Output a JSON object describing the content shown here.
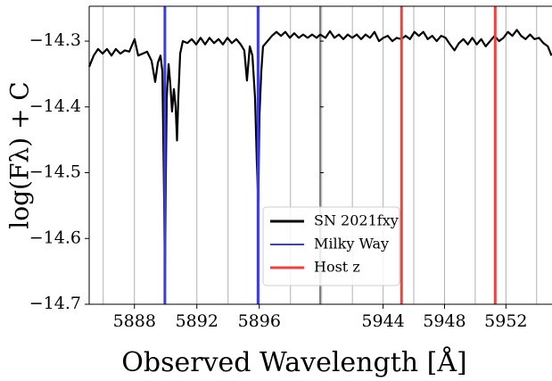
{
  "chart_data": {
    "type": "line",
    "ylabel": "log(Fλ) + C",
    "xlabel": "Observed Wavelength [Å]",
    "ylim": [
      -14.7,
      -14.247
    ],
    "yticks": [
      {
        "value": -14.3,
        "label": "−14.3"
      },
      {
        "value": -14.4,
        "label": "−14.4"
      },
      {
        "value": -14.5,
        "label": "−14.5"
      },
      {
        "value": -14.6,
        "label": "−14.6"
      },
      {
        "value": -14.7,
        "label": "−14.7"
      }
    ],
    "grid": true,
    "legend": "lower center",
    "panels": [
      {
        "xlim": [
          5885.1,
          5899.9
        ],
        "xticks": [
          5888,
          5892,
          5896
        ],
        "xgrid": [
          5886,
          5888,
          5890,
          5892,
          5894,
          5896,
          5898
        ]
      },
      {
        "xlim": [
          5939.9,
          5955.0
        ],
        "xticks": [
          5944,
          5948,
          5952
        ],
        "xgrid": [
          5940,
          5942,
          5944,
          5946,
          5948,
          5950,
          5952,
          5954
        ]
      }
    ],
    "series": [
      {
        "name": "SN 2021fxy",
        "color": "#000000",
        "x": [
          5885.1,
          5885.39,
          5885.67,
          5885.96,
          5886.24,
          5886.53,
          5886.81,
          5887.1,
          5887.39,
          5887.67,
          5888.01,
          5888.24,
          5888.53,
          5888.81,
          5889.1,
          5889.33,
          5889.5,
          5889.67,
          5889.79,
          5889.9,
          5889.96,
          5890.01,
          5890.07,
          5890.19,
          5890.3,
          5890.41,
          5890.53,
          5890.64,
          5890.73,
          5890.81,
          5890.93,
          5891.1,
          5891.39,
          5891.67,
          5891.96,
          5892.24,
          5892.53,
          5892.81,
          5893.1,
          5893.39,
          5893.67,
          5893.96,
          5894.24,
          5894.53,
          5894.81,
          5895.04,
          5895.21,
          5895.39,
          5895.56,
          5895.73,
          5895.84,
          5895.93,
          5896.01,
          5896.13,
          5896.24,
          5896.53,
          5896.81,
          5897.1,
          5897.39,
          5897.67,
          5897.96,
          5898.24,
          5898.53,
          5898.81,
          5899.1,
          5899.39,
          5899.67,
          5899.9,
          null,
          5939.9,
          5940.25,
          5940.54,
          5940.83,
          5941.12,
          5941.41,
          5941.7,
          5941.99,
          5942.28,
          5942.57,
          5942.86,
          5943.15,
          5943.44,
          5943.73,
          5944.02,
          5944.31,
          5944.6,
          5944.89,
          5945.18,
          5945.47,
          5945.75,
          5946.04,
          5946.33,
          5946.62,
          5946.91,
          5947.2,
          5947.49,
          5947.78,
          5948.07,
          5948.36,
          5948.65,
          5948.94,
          5949.23,
          5949.52,
          5949.81,
          5950.1,
          5950.39,
          5950.68,
          5950.97,
          5951.26,
          5951.55,
          5951.84,
          5952.13,
          5952.42,
          5952.71,
          5952.99,
          5953.28,
          5953.57,
          5953.86,
          5954.15,
          5954.44,
          5954.73,
          5954.97
        ],
        "values": [
          -14.339,
          -14.322,
          -14.312,
          -14.319,
          -14.312,
          -14.322,
          -14.312,
          -14.319,
          -14.314,
          -14.316,
          -14.297,
          -14.322,
          -14.319,
          -14.316,
          -14.33,
          -14.362,
          -14.333,
          -14.322,
          -14.346,
          -14.536,
          -14.669,
          -14.509,
          -14.387,
          -14.335,
          -14.366,
          -14.407,
          -14.373,
          -14.4,
          -14.451,
          -14.387,
          -14.319,
          -14.3,
          -14.303,
          -14.297,
          -14.305,
          -14.295,
          -14.305,
          -14.295,
          -14.303,
          -14.297,
          -14.305,
          -14.295,
          -14.303,
          -14.297,
          -14.305,
          -14.314,
          -14.36,
          -14.308,
          -14.322,
          -14.387,
          -14.482,
          -14.544,
          -14.414,
          -14.346,
          -14.308,
          -14.3,
          -14.292,
          -14.286,
          -14.292,
          -14.286,
          -14.295,
          -14.288,
          -14.295,
          -14.29,
          -14.295,
          -14.29,
          -14.295,
          -14.29,
          null,
          -14.29,
          -14.295,
          -14.285,
          -14.295,
          -14.29,
          -14.297,
          -14.29,
          -14.295,
          -14.29,
          -14.297,
          -14.29,
          -14.295,
          -14.286,
          -14.3,
          -14.295,
          -14.292,
          -14.3,
          -14.295,
          -14.297,
          -14.292,
          -14.297,
          -14.286,
          -14.292,
          -14.286,
          -14.297,
          -14.292,
          -14.3,
          -14.292,
          -14.295,
          -14.305,
          -14.314,
          -14.303,
          -14.297,
          -14.305,
          -14.295,
          -14.305,
          -14.297,
          -14.308,
          -14.3,
          -14.292,
          -14.3,
          -14.295,
          -14.286,
          -14.292,
          -14.283,
          -14.292,
          -14.297,
          -14.29,
          -14.297,
          -14.295,
          -14.303,
          -14.308,
          -14.322
        ]
      }
    ],
    "vlines": [
      {
        "name": "Milky Way",
        "color": "#3c3ce6",
        "x": [
          5889.95,
          5895.92
        ]
      },
      {
        "name": "Host z",
        "color": "#f04040",
        "x": [
          5945.2,
          5951.3
        ]
      }
    ]
  }
}
